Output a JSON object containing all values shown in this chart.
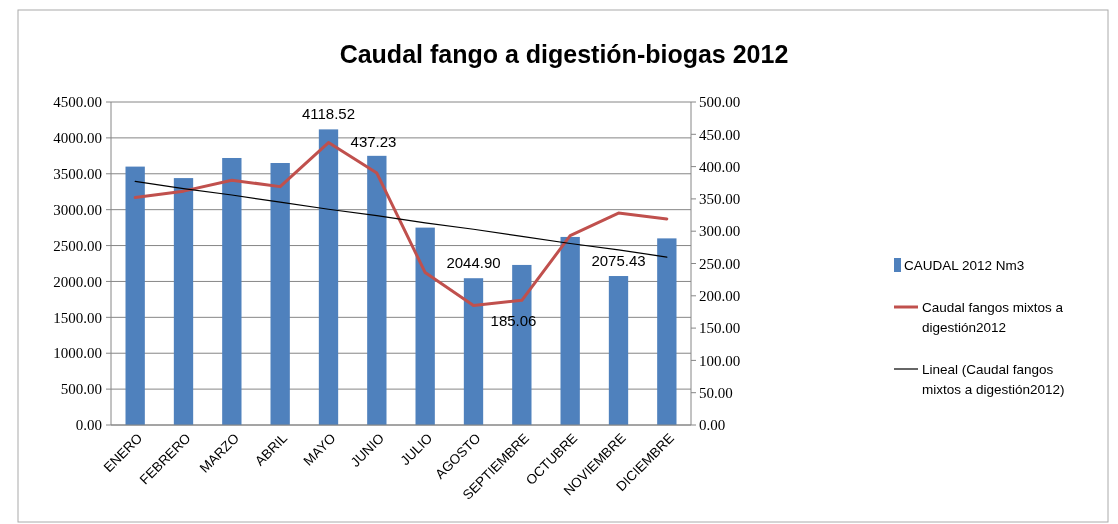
{
  "chart_data": {
    "type": "bar",
    "title": "Caudal fango a digestión-biogas 2012",
    "categories": [
      "ENERO",
      "FEBRERO",
      "MARZO",
      "ABRIL",
      "MAYO",
      "JUNIO",
      "JULIO",
      "AGOSTO",
      "SEPTIEMBRE",
      "OCTUBRE",
      "NOVIEMBRE",
      "DICIEMBRE"
    ],
    "series": [
      {
        "name": "CAUDAL 2012 Nm3",
        "color": "#4f81bd",
        "values": [
          3600,
          3440,
          3720,
          3650,
          4118.52,
          3750,
          2750,
          2044.9,
          2230,
          2620,
          2075.43,
          2600
        ],
        "value_labels": [
          null,
          null,
          null,
          null,
          "4118.52",
          null,
          null,
          "2044.90",
          null,
          null,
          "2075.43",
          null
        ]
      },
      {
        "name": "Caudal fangos mixtos a digestión2012",
        "type": "line",
        "axis": "y2",
        "color": "#c0504d",
        "values": [
          352,
          362,
          379,
          369,
          437.23,
          390,
          236,
          185.06,
          193,
          293,
          328,
          319
        ],
        "value_labels": [
          null,
          null,
          null,
          null,
          "437.23",
          null,
          null,
          "185.06",
          null,
          null,
          null,
          null
        ]
      },
      {
        "name": "Lineal (Caudal fangos mixtos a digestión2012)",
        "type": "line",
        "axis": "y2",
        "color": "#000000",
        "values": [
          377,
          366,
          356,
          345,
          334,
          324,
          313,
          303,
          292,
          281,
          271,
          260
        ]
      }
    ],
    "ylim": [
      0,
      4500
    ],
    "yticks": [
      {
        "value": 0,
        "label": "0.00"
      },
      {
        "value": 500,
        "label": "500.00"
      },
      {
        "value": 1000,
        "label": "1000.00"
      },
      {
        "value": 1500,
        "label": "1500.00"
      },
      {
        "value": 2000,
        "label": "2000.00"
      },
      {
        "value": 2500,
        "label": "2500.00"
      },
      {
        "value": 3000,
        "label": "3000.00"
      },
      {
        "value": 3500,
        "label": "3500.00"
      },
      {
        "value": 4000,
        "label": "4000.00"
      },
      {
        "value": 4500,
        "label": "4500.00"
      }
    ],
    "y2lim": [
      0,
      500
    ],
    "y2ticks": [
      {
        "value": 0,
        "label": "0.00"
      },
      {
        "value": 50,
        "label": "50.00"
      },
      {
        "value": 100,
        "label": "100.00"
      },
      {
        "value": 150,
        "label": "150.00"
      },
      {
        "value": 200,
        "label": "200.00"
      },
      {
        "value": 250,
        "label": "250.00"
      },
      {
        "value": 300,
        "label": "300.00"
      },
      {
        "value": 350,
        "label": "350.00"
      },
      {
        "value": 400,
        "label": "400.00"
      },
      {
        "value": 450,
        "label": "450.00"
      },
      {
        "value": 500,
        "label": "500.00"
      }
    ],
    "grid": "y",
    "legend": "right"
  }
}
